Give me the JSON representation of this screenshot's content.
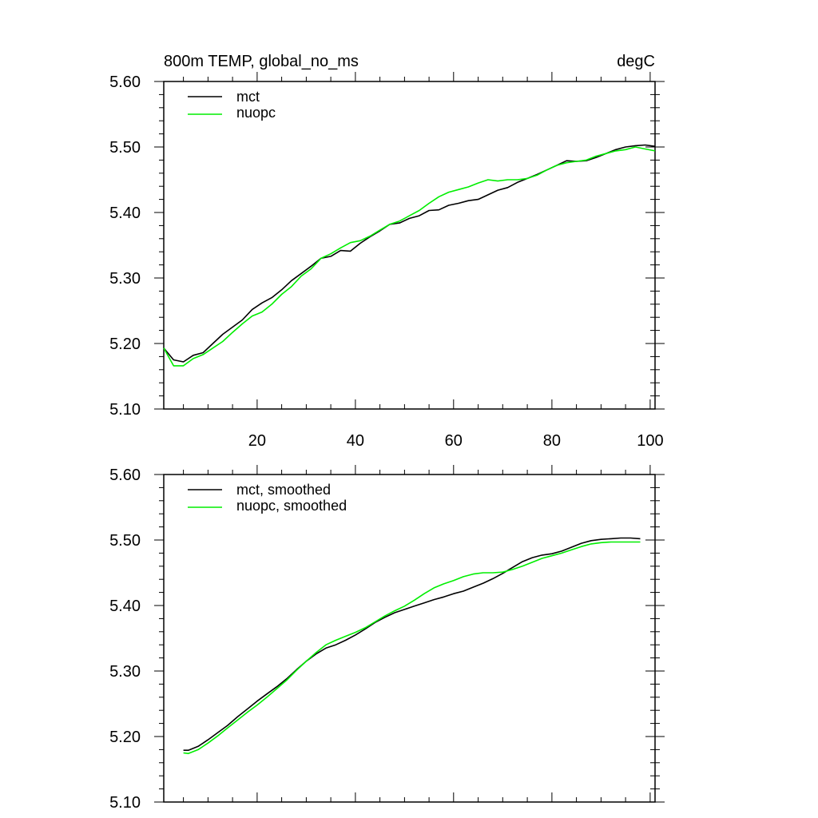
{
  "chart_data": [
    {
      "type": "line",
      "title": "800m TEMP, global_no_ms",
      "units": "degC",
      "xlim": [
        1,
        101
      ],
      "ylim": [
        5.1,
        5.6
      ],
      "x_ticks": [
        20,
        40,
        60,
        80,
        100
      ],
      "y_ticks": [
        "5.10",
        "5.20",
        "5.30",
        "5.40",
        "5.50",
        "5.60"
      ],
      "legend_position": "top-left",
      "series": [
        {
          "name": "mct",
          "color": "#000000",
          "x": [
            1,
            3,
            5,
            7,
            9,
            11,
            13,
            15,
            17,
            19,
            21,
            23,
            25,
            27,
            29,
            31,
            33,
            35,
            37,
            39,
            41,
            43,
            45,
            47,
            49,
            51,
            53,
            55,
            57,
            59,
            61,
            63,
            65,
            67,
            69,
            71,
            73,
            75,
            77,
            79,
            81,
            83,
            85,
            87,
            89,
            91,
            93,
            95,
            97,
            99,
            101
          ],
          "values": [
            5.193,
            5.175,
            5.172,
            5.182,
            5.186,
            5.2,
            5.214,
            5.225,
            5.236,
            5.252,
            5.262,
            5.27,
            5.282,
            5.296,
            5.307,
            5.318,
            5.33,
            5.333,
            5.342,
            5.341,
            5.353,
            5.363,
            5.372,
            5.382,
            5.384,
            5.391,
            5.395,
            5.403,
            5.404,
            5.411,
            5.414,
            5.418,
            5.42,
            5.427,
            5.434,
            5.438,
            5.446,
            5.452,
            5.458,
            5.465,
            5.472,
            5.479,
            5.478,
            5.479,
            5.484,
            5.49,
            5.496,
            5.5,
            5.502,
            5.503,
            5.501
          ]
        },
        {
          "name": "nuopc",
          "color": "#00ee00",
          "x": [
            1,
            3,
            5,
            7,
            9,
            11,
            13,
            15,
            17,
            19,
            21,
            23,
            25,
            27,
            29,
            31,
            33,
            35,
            37,
            39,
            41,
            43,
            45,
            47,
            49,
            51,
            53,
            55,
            57,
            59,
            61,
            63,
            65,
            67,
            69,
            71,
            73,
            75,
            77,
            79,
            81,
            83,
            85,
            87,
            89,
            91,
            93,
            95,
            97,
            99,
            101
          ],
          "values": [
            5.193,
            5.166,
            5.166,
            5.177,
            5.183,
            5.193,
            5.203,
            5.217,
            5.23,
            5.242,
            5.248,
            5.26,
            5.275,
            5.287,
            5.303,
            5.314,
            5.33,
            5.337,
            5.346,
            5.354,
            5.357,
            5.364,
            5.373,
            5.382,
            5.387,
            5.395,
            5.403,
            5.414,
            5.424,
            5.431,
            5.435,
            5.439,
            5.445,
            5.45,
            5.448,
            5.45,
            5.45,
            5.452,
            5.457,
            5.465,
            5.472,
            5.476,
            5.478,
            5.48,
            5.486,
            5.49,
            5.494,
            5.496,
            5.5,
            5.497,
            5.494
          ]
        }
      ]
    },
    {
      "type": "line",
      "xlim": [
        1,
        101
      ],
      "ylim": [
        5.1,
        5.6
      ],
      "y_ticks": [
        "5.10",
        "5.20",
        "5.30",
        "5.40",
        "5.50",
        "5.60"
      ],
      "legend_position": "top-left",
      "series": [
        {
          "name": "mct, smoothed",
          "color": "#000000",
          "x": [
            5,
            6,
            8,
            10,
            12,
            14,
            16,
            18,
            20,
            22,
            24,
            26,
            28,
            30,
            32,
            34,
            36,
            38,
            40,
            42,
            44,
            46,
            48,
            50,
            52,
            54,
            56,
            58,
            60,
            62,
            64,
            66,
            68,
            70,
            72,
            74,
            76,
            78,
            80,
            82,
            84,
            86,
            88,
            90,
            92,
            94,
            96,
            98
          ],
          "values": [
            5.179,
            5.179,
            5.185,
            5.195,
            5.206,
            5.217,
            5.23,
            5.242,
            5.254,
            5.265,
            5.276,
            5.288,
            5.302,
            5.315,
            5.326,
            5.335,
            5.34,
            5.347,
            5.355,
            5.364,
            5.374,
            5.382,
            5.389,
            5.394,
            5.399,
            5.404,
            5.409,
            5.413,
            5.418,
            5.422,
            5.428,
            5.434,
            5.441,
            5.449,
            5.458,
            5.467,
            5.473,
            5.477,
            5.479,
            5.483,
            5.489,
            5.495,
            5.499,
            5.501,
            5.502,
            5.503,
            5.503,
            5.502
          ]
        },
        {
          "name": "nuopc, smoothed",
          "color": "#00ee00",
          "x": [
            5,
            6,
            8,
            10,
            12,
            14,
            16,
            18,
            20,
            22,
            24,
            26,
            28,
            30,
            32,
            34,
            36,
            38,
            40,
            42,
            44,
            46,
            48,
            50,
            52,
            54,
            56,
            58,
            60,
            62,
            64,
            66,
            68,
            70,
            72,
            74,
            76,
            78,
            80,
            82,
            84,
            86,
            88,
            90,
            92,
            94,
            96,
            98
          ],
          "values": [
            5.175,
            5.174,
            5.18,
            5.19,
            5.201,
            5.213,
            5.225,
            5.237,
            5.248,
            5.26,
            5.273,
            5.286,
            5.301,
            5.315,
            5.328,
            5.34,
            5.347,
            5.353,
            5.359,
            5.366,
            5.375,
            5.384,
            5.392,
            5.399,
            5.408,
            5.418,
            5.427,
            5.433,
            5.438,
            5.444,
            5.448,
            5.45,
            5.45,
            5.451,
            5.455,
            5.46,
            5.466,
            5.472,
            5.476,
            5.48,
            5.485,
            5.49,
            5.494,
            5.496,
            5.497,
            5.497,
            5.497,
            5.497
          ]
        }
      ]
    }
  ]
}
